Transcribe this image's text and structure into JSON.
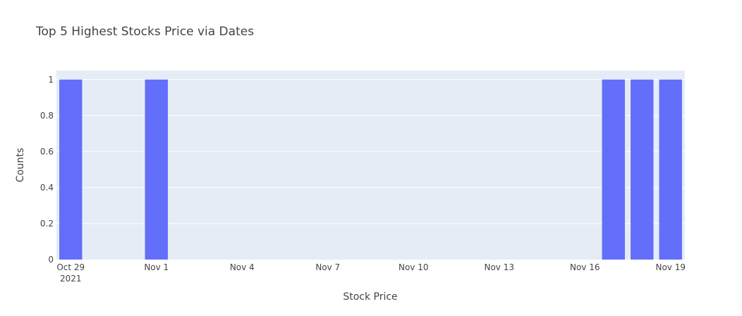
{
  "chart_data": {
    "type": "bar",
    "title": "Top 5 Highest Stocks Price via Dates",
    "xlabel": "Stock Price",
    "ylabel": "Counts",
    "x": [
      "2021-10-29",
      "2021-11-01",
      "2021-11-17",
      "2021-11-18",
      "2021-11-19"
    ],
    "values": [
      1,
      1,
      1,
      1,
      1
    ],
    "ylim": [
      0,
      1.05
    ],
    "yticks": [
      0,
      0.2,
      0.4,
      0.6,
      0.8,
      1
    ],
    "ytick_labels": [
      "0",
      "0.2",
      "0.4",
      "0.6",
      "0.8",
      "1"
    ],
    "xticks": [
      {
        "date": "2021-10-29",
        "label": "Oct 29",
        "sublabel": "2021"
      },
      {
        "date": "2021-11-01",
        "label": "Nov 1",
        "sublabel": ""
      },
      {
        "date": "2021-11-04",
        "label": "Nov 4",
        "sublabel": ""
      },
      {
        "date": "2021-11-07",
        "label": "Nov 7",
        "sublabel": ""
      },
      {
        "date": "2021-11-10",
        "label": "Nov 10",
        "sublabel": ""
      },
      {
        "date": "2021-11-13",
        "label": "Nov 13",
        "sublabel": ""
      },
      {
        "date": "2021-11-16",
        "label": "Nov 16",
        "sublabel": ""
      },
      {
        "date": "2021-11-19",
        "label": "Nov 19",
        "sublabel": ""
      }
    ],
    "xlim": [
      "2021-10-28T12:00:00",
      "2021-11-19T12:00:00"
    ],
    "grid": true,
    "colors": {
      "bar": "#636efa",
      "plot_bg": "#e5ecf6",
      "grid": "#ffffff"
    }
  }
}
